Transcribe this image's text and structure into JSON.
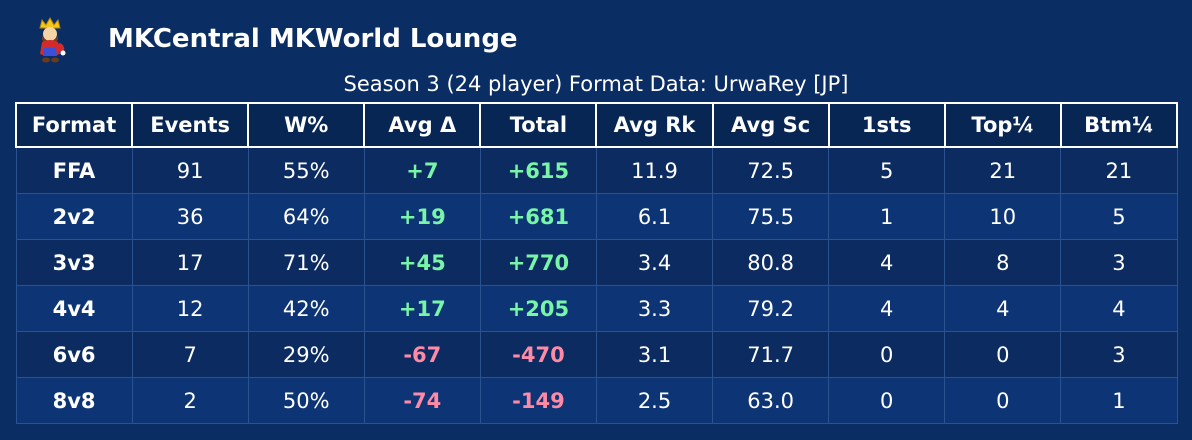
{
  "header": {
    "title": "MKCentral MKWorld Lounge",
    "logo_icon": "mario-character-icon"
  },
  "subtitle": "Season 3 (24 player) Format Data: UrwaRey [JP]",
  "colors": {
    "background": "#0a2d63",
    "header_row": "#082654",
    "positive": "#79f5a7",
    "negative": "#ff8aa6"
  },
  "table": {
    "columns": [
      "Format",
      "Events",
      "W%",
      "Avg Δ",
      "Total",
      "Avg Rk",
      "Avg Sc",
      "1sts",
      "Top¼",
      "Btm¼"
    ],
    "rows": [
      {
        "format": "FFA",
        "events": "91",
        "win_pct": "55%",
        "avg_delta": "+7",
        "total": "+615",
        "avg_rank": "11.9",
        "avg_score": "72.5",
        "firsts": "5",
        "top_quarter": "21",
        "bottom_quarter": "21"
      },
      {
        "format": "2v2",
        "events": "36",
        "win_pct": "64%",
        "avg_delta": "+19",
        "total": "+681",
        "avg_rank": "6.1",
        "avg_score": "75.5",
        "firsts": "1",
        "top_quarter": "10",
        "bottom_quarter": "5"
      },
      {
        "format": "3v3",
        "events": "17",
        "win_pct": "71%",
        "avg_delta": "+45",
        "total": "+770",
        "avg_rank": "3.4",
        "avg_score": "80.8",
        "firsts": "4",
        "top_quarter": "8",
        "bottom_quarter": "3"
      },
      {
        "format": "4v4",
        "events": "12",
        "win_pct": "42%",
        "avg_delta": "+17",
        "total": "+205",
        "avg_rank": "3.3",
        "avg_score": "79.2",
        "firsts": "4",
        "top_quarter": "4",
        "bottom_quarter": "4"
      },
      {
        "format": "6v6",
        "events": "7",
        "win_pct": "29%",
        "avg_delta": "-67",
        "total": "-470",
        "avg_rank": "3.1",
        "avg_score": "71.7",
        "firsts": "0",
        "top_quarter": "0",
        "bottom_quarter": "3"
      },
      {
        "format": "8v8",
        "events": "2",
        "win_pct": "50%",
        "avg_delta": "-74",
        "total": "-149",
        "avg_rank": "2.5",
        "avg_score": "63.0",
        "firsts": "0",
        "top_quarter": "0",
        "bottom_quarter": "1"
      }
    ]
  }
}
